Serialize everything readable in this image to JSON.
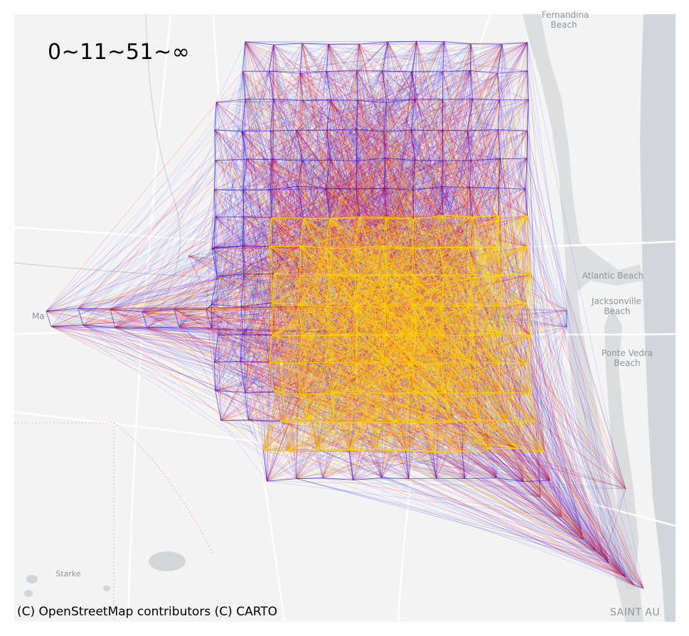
{
  "legend": {
    "title": "0~11~51~∞"
  },
  "attribution": "(C) OpenStreetMap contributors (C) CARTO",
  "places": {
    "fernandina": [
      "Fernandina",
      "Beach"
    ],
    "atlantic_beach": "Atlantic Beach",
    "jacksonville_beach": [
      "Jacksonville",
      "Beach"
    ],
    "ponte_vedra": [
      "Ponte Vedra",
      "Beach"
    ],
    "macclenny_partial": "Ma",
    "starke": "Starke",
    "saint_augustine_partial": "SAINT AU"
  },
  "colors": {
    "band_low": "#0000ff",
    "band_mid": "#ff0000",
    "band_high": "#ffd700",
    "basemap_land": "#f2f3f2",
    "basemap_water": "#d3d6d8",
    "basemap_roads": "#ffffff"
  },
  "flow_bands": [
    {
      "range": "0~11",
      "color": "#0000ff"
    },
    {
      "range": "11~51",
      "color": "#ff0000"
    },
    {
      "range": "51~∞",
      "color": "#ffd700"
    }
  ]
}
